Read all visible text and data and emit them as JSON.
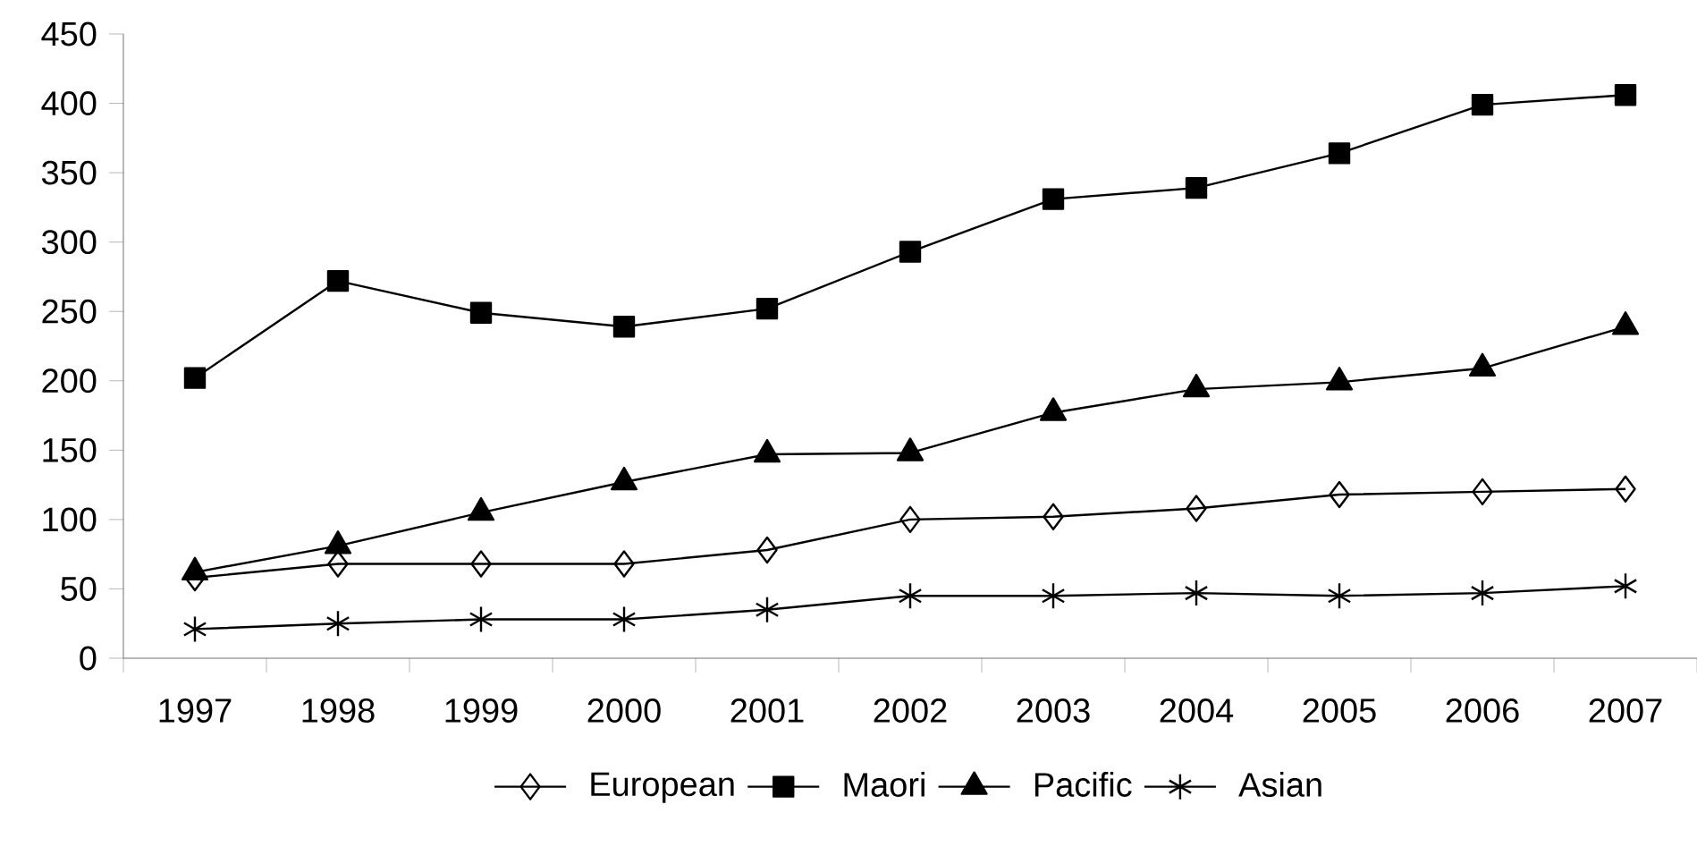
{
  "chart_data": {
    "type": "line",
    "categories": [
      "1997",
      "1998",
      "1999",
      "2000",
      "2001",
      "2002",
      "2003",
      "2004",
      "2005",
      "2006",
      "2007"
    ],
    "series": [
      {
        "name": "European",
        "color": "#000000",
        "marker": "diamond",
        "values": [
          58,
          68,
          68,
          68,
          78,
          100,
          102,
          108,
          118,
          120,
          122
        ]
      },
      {
        "name": "Maori",
        "color": "#000000",
        "marker": "square",
        "values": [
          202,
          272,
          249,
          239,
          252,
          293,
          331,
          339,
          364,
          399,
          406
        ]
      },
      {
        "name": "Pacific",
        "color": "#000000",
        "marker": "triangle",
        "values": [
          62,
          81,
          105,
          127,
          147,
          148,
          177,
          194,
          199,
          209,
          239
        ]
      },
      {
        "name": "Asian",
        "color": "#000000",
        "marker": "cross",
        "values": [
          21,
          25,
          28,
          28,
          35,
          45,
          45,
          47,
          45,
          47,
          52
        ]
      }
    ],
    "ylim": [
      0,
      450
    ],
    "yticks": [
      0,
      50,
      100,
      150,
      200,
      250,
      300,
      350,
      400,
      450
    ],
    "grid": false,
    "legend": "bottom",
    "line_style": "solid"
  }
}
